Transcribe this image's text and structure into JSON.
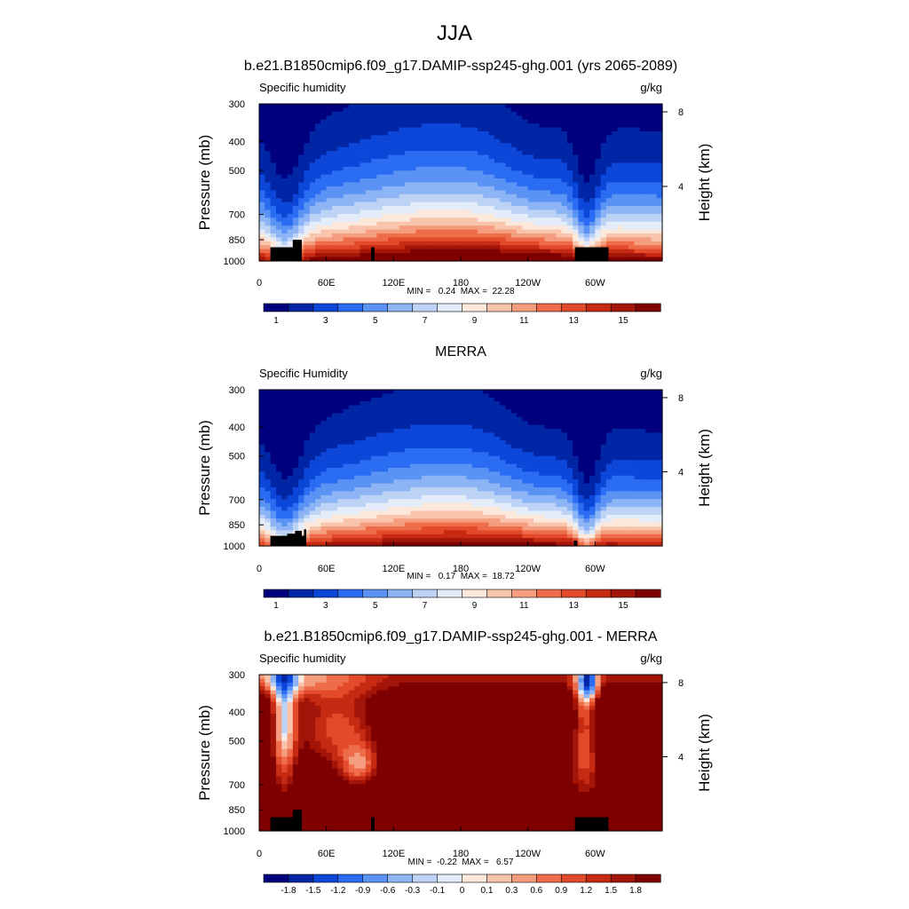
{
  "figure": {
    "title": "JJA"
  },
  "colorbar_abs": {
    "colors": [
      "#00007f",
      "#0026a6",
      "#0d47d9",
      "#2b6df2",
      "#5b93f4",
      "#8db4f5",
      "#bcd3f6",
      "#e3ecf8",
      "#fde8dc",
      "#f9c4ac",
      "#f59d7f",
      "#ef6c4a",
      "#e24a2a",
      "#c62a13",
      "#a31508",
      "#7f0000"
    ],
    "tick_labels": [
      "1",
      "3",
      "5",
      "7",
      "9",
      "11",
      "13",
      "15"
    ]
  },
  "colorbar_diff": {
    "colors": [
      "#00007f",
      "#0026a6",
      "#0d47d9",
      "#2b6df2",
      "#5b93f4",
      "#8db4f5",
      "#bcd3f6",
      "#e3ecf8",
      "#fde8dc",
      "#f9c4ac",
      "#f59d7f",
      "#ef6c4a",
      "#e24a2a",
      "#c62a13",
      "#a31508",
      "#7f0000"
    ],
    "tick_labels": [
      "-1.8",
      "-1.5",
      "-1.2",
      "-0.9",
      "-0.6",
      "-0.3",
      "-0.1",
      "0",
      "0.1",
      "0.3",
      "0.6",
      "0.9",
      "1.2",
      "1.5",
      "1.8"
    ]
  },
  "chart_data": [
    {
      "type": "heatmap",
      "title": "b.e21.B1850cmip6.f09_g17.DAMIP-ssp245-ghg.001 (yrs 2065-2089)",
      "left_string": "Specific humidity",
      "right_string": "g/kg",
      "ylabel": "Pressure (mb)",
      "ylabel_right": "Height (km)",
      "x_ticks": [
        "0",
        "60E",
        "120E",
        "180",
        "120W",
        "60W"
      ],
      "y_ticks": [
        "300",
        "400",
        "500",
        "700",
        "850",
        "1000"
      ],
      "y2_ticks": [
        "8",
        "4"
      ],
      "stats": "MIN =   0.24  MAX =  22.28",
      "xlim": [
        0,
        360
      ],
      "ylim": [
        1000,
        300
      ],
      "field": "humidity",
      "scale_max": 22.28,
      "land_mask": "model"
    },
    {
      "type": "heatmap",
      "title": "MERRA",
      "left_string": "Specific Humidity",
      "right_string": "g/kg",
      "ylabel": "Pressure (mb)",
      "ylabel_right": "Height (km)",
      "x_ticks": [
        "0",
        "60E",
        "120E",
        "180",
        "120W",
        "60W"
      ],
      "y_ticks": [
        "300",
        "400",
        "500",
        "700",
        "850",
        "1000"
      ],
      "y2_ticks": [
        "8",
        "4"
      ],
      "stats": "MIN =   0.17  MAX =  18.72",
      "xlim": [
        0,
        360
      ],
      "ylim": [
        1000,
        300
      ],
      "field": "humidity",
      "scale_max": 18.72,
      "land_mask": "obs"
    },
    {
      "type": "heatmap",
      "title": "b.e21.B1850cmip6.f09_g17.DAMIP-ssp245-ghg.001 - MERRA",
      "left_string": "Specific humidity",
      "right_string": "g/kg",
      "ylabel": "Pressure (mb)",
      "ylabel_right": "Height (km)",
      "x_ticks": [
        "0",
        "60E",
        "120E",
        "180",
        "120W",
        "60W"
      ],
      "y_ticks": [
        "300",
        "400",
        "500",
        "700",
        "850",
        "1000"
      ],
      "y2_ticks": [
        "8",
        "4"
      ],
      "stats": "MIN =  -0.22  MAX =   6.57",
      "xlim": [
        0,
        360
      ],
      "ylim": [
        1000,
        300
      ],
      "field": "difference",
      "scale_max": 6.57,
      "land_mask": "model"
    }
  ]
}
